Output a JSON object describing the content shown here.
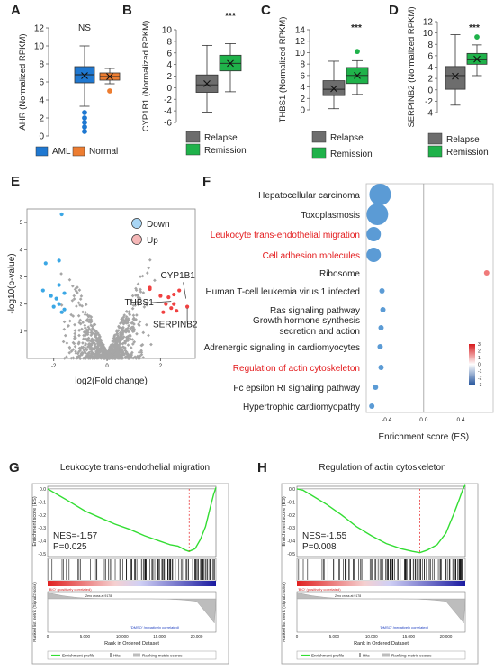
{
  "panel_letters": {
    "A": "A",
    "B": "B",
    "C": "C",
    "D": "D",
    "E": "E",
    "F": "F",
    "G": "G",
    "H": "H"
  },
  "colors": {
    "aml": "#1f78d1",
    "normal": "#ed7d31",
    "relapse": "#6d6d6d",
    "remission": "#1fb24a",
    "down": "#3ba7e5",
    "up": "#f04141",
    "dots_ns": "#a6a6a6",
    "bubble": "#5b9bd5",
    "gsea_line": "#33dd33",
    "highlight_red": "#e31a1c"
  },
  "chart_data": [
    {
      "id": "A",
      "type": "box",
      "ylabel": "AHR (Normalized RPKM)",
      "ylim": [
        0,
        12
      ],
      "yticks": [
        0,
        2,
        4,
        6,
        8,
        10,
        12
      ],
      "annotation": "NS",
      "groups": [
        {
          "name": "AML",
          "min": 3.3,
          "q1": 5.9,
          "median": 6.8,
          "mean": 6.7,
          "q3": 7.7,
          "max": 10.0,
          "outliers": [
            0.5,
            1.0,
            1.5,
            2.0,
            2.6
          ]
        },
        {
          "name": "Normal",
          "min": 5.8,
          "q1": 6.2,
          "median": 6.6,
          "mean": 6.6,
          "q3": 7.0,
          "max": 7.5,
          "outliers": [
            5.0
          ]
        }
      ],
      "legend": [
        "AML",
        "Normal"
      ]
    },
    {
      "id": "B",
      "type": "box",
      "ylabel": "CYP1B1 (Normalized RPKM)",
      "ylim": [
        -6,
        10
      ],
      "yticks": [
        -6,
        -4,
        -2,
        0,
        2,
        4,
        6,
        8,
        10
      ],
      "annotation": "***",
      "groups": [
        {
          "name": "Relapse",
          "min": -4.2,
          "q1": -0.8,
          "median": 0.5,
          "mean": 0.7,
          "q3": 2.2,
          "max": 7.3,
          "outliers": []
        },
        {
          "name": "Remission",
          "min": -0.7,
          "q1": 2.9,
          "median": 4.2,
          "mean": 4.2,
          "q3": 5.6,
          "max": 7.6,
          "outliers": []
        }
      ],
      "legend": [
        "Relapse",
        "Remission"
      ]
    },
    {
      "id": "C",
      "type": "box",
      "ylabel": "THBS1 (Normalized RPKM)",
      "ylim": [
        0,
        14
      ],
      "yticks": [
        0,
        2,
        4,
        6,
        8,
        10,
        12,
        14
      ],
      "annotation": "***",
      "groups": [
        {
          "name": "Relapse",
          "min": 0.2,
          "q1": 2.5,
          "median": 3.6,
          "mean": 3.7,
          "q3": 5.1,
          "max": 8.5,
          "outliers": []
        },
        {
          "name": "Remission",
          "min": 2.7,
          "q1": 4.6,
          "median": 6.0,
          "mean": 6.0,
          "q3": 7.4,
          "max": 8.6,
          "outliers": [
            10.2
          ]
        }
      ],
      "legend": [
        "Relapse",
        "Remission"
      ]
    },
    {
      "id": "D",
      "type": "box",
      "ylabel": "SERPINB2 (Normalized RPKM)",
      "ylim": [
        -4,
        12
      ],
      "yticks": [
        -4,
        -2,
        0,
        2,
        4,
        6,
        8,
        10,
        12
      ],
      "annotation": "***",
      "groups": [
        {
          "name": "Relapse",
          "min": -2.7,
          "q1": 0.1,
          "median": 2.5,
          "mean": 2.4,
          "q3": 4.1,
          "max": 9.7,
          "outliers": []
        },
        {
          "name": "Remission",
          "min": 2.5,
          "q1": 4.5,
          "median": 5.3,
          "mean": 5.4,
          "q3": 6.4,
          "max": 7.9,
          "outliers": [
            9.3
          ]
        }
      ],
      "legend": [
        "Relapse",
        "Remission"
      ]
    },
    {
      "id": "E",
      "type": "scatter",
      "xlabel": "log2(Fold change)",
      "ylabel": "-log10(p-value)",
      "xlim": [
        -3,
        3.3
      ],
      "ylim": [
        0,
        5.5
      ],
      "xticks": [
        -2,
        0,
        2
      ],
      "yticks": [
        1,
        2,
        3,
        4,
        5
      ],
      "legend": [
        "Down",
        "Up"
      ],
      "down_points": [
        [
          -1.7,
          5.3
        ],
        [
          -2.3,
          3.5
        ],
        [
          -1.8,
          3.6
        ],
        [
          -2.4,
          2.5
        ],
        [
          -2.1,
          2.3
        ],
        [
          -1.9,
          2.2
        ],
        [
          -1.6,
          2.4
        ],
        [
          -1.8,
          2.7
        ],
        [
          -2.0,
          1.9
        ],
        [
          -1.7,
          1.7
        ],
        [
          -1.6,
          1.8
        ],
        [
          -1.8,
          2.0
        ]
      ],
      "up_points": [
        [
          1.6,
          2.6
        ],
        [
          1.6,
          2.55
        ],
        [
          2.0,
          2.3
        ],
        [
          2.2,
          2.0
        ],
        [
          2.3,
          2.25
        ],
        [
          2.1,
          1.7
        ],
        [
          2.5,
          2.0
        ],
        [
          2.4,
          1.85
        ],
        [
          3.0,
          1.9
        ],
        [
          2.6,
          1.75
        ],
        [
          2.7,
          2.5
        ],
        [
          2.5,
          2.35
        ]
      ],
      "labels": [
        {
          "text": "CYP1B1",
          "x": 2.65,
          "y": 2.95
        },
        {
          "text": "THBS1",
          "x": 1.2,
          "y": 1.95
        },
        {
          "text": "SERPINB2",
          "x": 2.55,
          "y": 1.15
        }
      ]
    },
    {
      "id": "F",
      "type": "bubble",
      "xlabel": "Enrichment score (ES)",
      "xlim": [
        -0.62,
        0.75
      ],
      "xticks": [
        -0.4,
        0.0,
        0.4
      ],
      "colorbar_ticks": [
        3,
        2,
        1,
        0,
        -1,
        -2,
        -3
      ],
      "terms": [
        {
          "name": "Hepatocellular carcinoma",
          "es": -0.47,
          "size": 12,
          "color": "#5b9bd5",
          "red": false
        },
        {
          "name": "Toxoplasmosis",
          "es": -0.5,
          "size": 12,
          "color": "#5b9bd5",
          "red": false
        },
        {
          "name": "Leukocyte trans-endothelial migration",
          "es": -0.54,
          "size": 8,
          "color": "#5b9bd5",
          "red": true
        },
        {
          "name": "Cell adhesion molecules",
          "es": -0.54,
          "size": 8,
          "color": "#5b9bd5",
          "red": true
        },
        {
          "name": "Ribosome",
          "es": 0.68,
          "size": 3,
          "color": "#f07a7a",
          "red": false
        },
        {
          "name": "Human T-cell leukemia virus 1 infected",
          "es": -0.45,
          "size": 3,
          "color": "#5b9bd5",
          "red": false
        },
        {
          "name": "Ras signaling pathway",
          "es": -0.44,
          "size": 3,
          "color": "#5b9bd5",
          "red": false
        },
        {
          "name": "Growth hormone synthesis secretion and action",
          "es": -0.46,
          "size": 3,
          "color": "#5b9bd5",
          "red": false
        },
        {
          "name": "Adrenergic signaling in cardiomyocytes",
          "es": -0.47,
          "size": 3,
          "color": "#5b9bd5",
          "red": false
        },
        {
          "name": "Regulation of actin cytoskeleton",
          "es": -0.46,
          "size": 3,
          "color": "#5b9bd5",
          "red": true
        },
        {
          "name": "Fc epsilon RI signaling pathway",
          "es": -0.52,
          "size": 3,
          "color": "#5b9bd5",
          "red": false
        },
        {
          "name": "Hypertrophic cardiomyopathy",
          "es": -0.56,
          "size": 3,
          "color": "#5b9bd5",
          "red": false
        }
      ]
    },
    {
      "id": "G",
      "type": "gsea",
      "title": "Leukocyte trans-endothelial migration",
      "nes": "NES=-1.57",
      "pval": "P=0.025",
      "ylabel_top": "Enrichment score (ES)",
      "ylabel_bottom": "Ranked list metric (Signal2Noise)",
      "xlabel": "Rank in Ordered Dataset",
      "yticks": [
        0.0,
        -0.1,
        -0.2,
        -0.3,
        -0.4,
        -0.5
      ],
      "xticks": [
        0,
        5000,
        10000,
        15000,
        20000
      ],
      "xtick_labels": [
        "0",
        "5,000",
        "10,000",
        "15,000",
        "20,000"
      ],
      "pos_label": "'BIO' (positively correlated)",
      "neg_label": "'DMSO' (negatively correlated)",
      "zero_cross": "Zero cross at 9178",
      "legend": [
        "Enrichment profile",
        "Hits",
        "Ranking metric scores"
      ],
      "min_es": -0.48,
      "min_rank": 19000,
      "curve": [
        [
          0,
          0.0
        ],
        [
          600,
          -0.02
        ],
        [
          1500,
          -0.05
        ],
        [
          3000,
          -0.1
        ],
        [
          5000,
          -0.17
        ],
        [
          7000,
          -0.22
        ],
        [
          9000,
          -0.27
        ],
        [
          11000,
          -0.31
        ],
        [
          13000,
          -0.36
        ],
        [
          15000,
          -0.4
        ],
        [
          16500,
          -0.43
        ],
        [
          17500,
          -0.44
        ],
        [
          18500,
          -0.47
        ],
        [
          19000,
          -0.48
        ],
        [
          19800,
          -0.46
        ],
        [
          20500,
          -0.39
        ],
        [
          21200,
          -0.29
        ],
        [
          21800,
          -0.15
        ],
        [
          22300,
          -0.04
        ],
        [
          22600,
          0.01
        ]
      ]
    },
    {
      "id": "H",
      "type": "gsea",
      "title": "Regulation of actin cytoskeleton",
      "nes": "NES=-1.55",
      "pval": "P=0.008",
      "ylabel_top": "Enrichment score (ES)",
      "ylabel_bottom": "Ranked list metric (Signal2Noise)",
      "xlabel": "Rank in Ordered Dataset",
      "yticks": [
        0.0,
        -0.1,
        -0.2,
        -0.3,
        -0.4,
        -0.5
      ],
      "xticks": [
        0,
        5000,
        10000,
        15000,
        20000
      ],
      "xtick_labels": [
        "0",
        "5,000",
        "10,000",
        "15,000",
        "20,000"
      ],
      "pos_label": "'BIO' (positively correlated)",
      "neg_label": "'DMSO' (negatively correlated)",
      "zero_cross": "Zero cross at 9178",
      "legend": [
        "Enrichment profile",
        "Hits",
        "Ranking metric scores"
      ],
      "min_es": -0.49,
      "min_rank": 16500,
      "curve": [
        [
          0,
          0.0
        ],
        [
          800,
          -0.01
        ],
        [
          2000,
          -0.05
        ],
        [
          4000,
          -0.12
        ],
        [
          6000,
          -0.2
        ],
        [
          8000,
          -0.29
        ],
        [
          10000,
          -0.36
        ],
        [
          12000,
          -0.42
        ],
        [
          14000,
          -0.46
        ],
        [
          15500,
          -0.48
        ],
        [
          16500,
          -0.49
        ],
        [
          17500,
          -0.47
        ],
        [
          18800,
          -0.43
        ],
        [
          20000,
          -0.34
        ],
        [
          21000,
          -0.2
        ],
        [
          21800,
          -0.08
        ],
        [
          22300,
          0.0
        ],
        [
          22600,
          0.03
        ]
      ]
    }
  ]
}
